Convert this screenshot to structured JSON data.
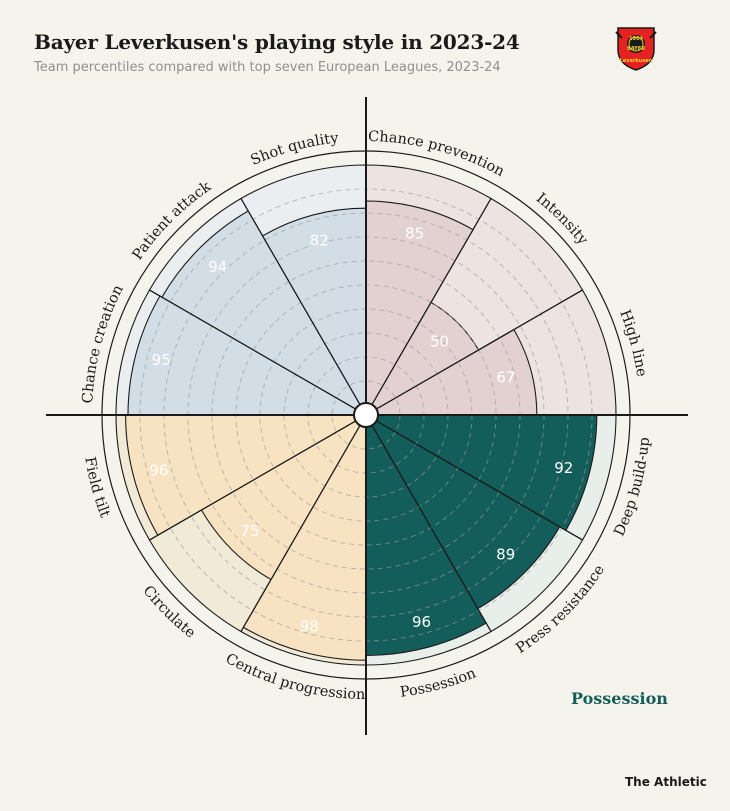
{
  "title": "Bayer Leverkusen's playing style in 2023-24",
  "subtitle": "Team percentiles compared with top seven European Leagues, 2023-24",
  "logo": {
    "year": "1904",
    "mark": "BAYER",
    "name": "Leverkusen"
  },
  "legend_label": "Possession",
  "credit": "The Athletic",
  "colors": {
    "background": "#f4f3ec",
    "attack": "#d3dde5",
    "defense": "#e3d1d1",
    "progression": "#f7e3c1",
    "possession": "#135e5a",
    "label_attack": "#ebeef0",
    "label_defense": "#ede3e1",
    "label_progression": "#f1ead7",
    "label_possession": "#e8eeea"
  },
  "chart_data": {
    "type": "polar-bar",
    "scale": [
      0,
      100
    ],
    "categories": [
      "Chance prevention",
      "Intensity",
      "High line",
      "Deep build-up",
      "Press resistance",
      "Possession",
      "Central progression",
      "Circulate",
      "Field tilt",
      "Chance creation",
      "Patient attack",
      "Shot quality"
    ],
    "values": [
      85,
      50,
      67,
      92,
      89,
      96,
      98,
      75,
      96,
      95,
      94,
      82
    ],
    "groups": [
      "defense",
      "defense",
      "defense",
      "possession",
      "possession",
      "possession",
      "progression",
      "progression",
      "progression",
      "attack",
      "attack",
      "attack"
    ],
    "value_labels": [
      "85",
      "50",
      "67",
      "92",
      "89",
      "96",
      "98",
      "75",
      "96",
      "95",
      "94",
      "82"
    ]
  }
}
